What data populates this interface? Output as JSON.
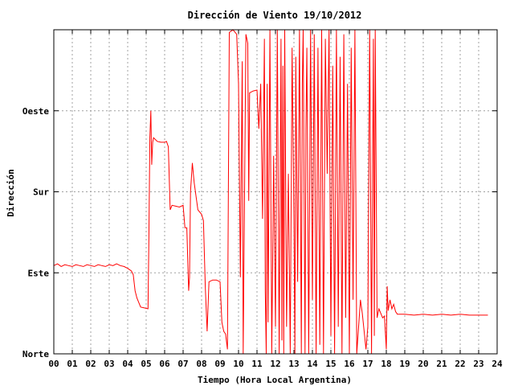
{
  "chart_data": {
    "type": "line",
    "title": "Dirección de Viento 19/10/2012",
    "xlabel": "Tiempo (Hora Local Argentina)",
    "ylabel": "Dirección",
    "xlim": [
      0,
      24
    ],
    "ylim": [
      0,
      360
    ],
    "x_ticks": [
      "00",
      "01",
      "02",
      "03",
      "04",
      "05",
      "06",
      "07",
      "08",
      "09",
      "10",
      "11",
      "12",
      "13",
      "14",
      "15",
      "16",
      "17",
      "18",
      "19",
      "20",
      "21",
      "22",
      "23",
      "24"
    ],
    "y_ticks": [
      {
        "value": 0,
        "label": "Norte"
      },
      {
        "value": 90,
        "label": "Este"
      },
      {
        "value": 180,
        "label": "Sur"
      },
      {
        "value": 270,
        "label": "Oeste"
      }
    ],
    "grid": true,
    "line_color": "#ff0000",
    "series": [
      {
        "values": [
          [
            0.0,
            98
          ],
          [
            0.2,
            100
          ],
          [
            0.4,
            97
          ],
          [
            0.6,
            99
          ],
          [
            0.8,
            98
          ],
          [
            1.0,
            97
          ],
          [
            1.2,
            99
          ],
          [
            1.4,
            98
          ],
          [
            1.6,
            97
          ],
          [
            1.8,
            99
          ],
          [
            2.0,
            98
          ],
          [
            2.2,
            97
          ],
          [
            2.4,
            99
          ],
          [
            2.6,
            98
          ],
          [
            2.8,
            97
          ],
          [
            3.0,
            99
          ],
          [
            3.2,
            98
          ],
          [
            3.4,
            100
          ],
          [
            3.6,
            98
          ],
          [
            3.8,
            97
          ],
          [
            4.0,
            95
          ],
          [
            4.2,
            92
          ],
          [
            4.3,
            88
          ],
          [
            4.4,
            70
          ],
          [
            4.5,
            62
          ],
          [
            4.7,
            52
          ],
          [
            4.9,
            51
          ],
          [
            5.1,
            50
          ],
          [
            5.15,
            130
          ],
          [
            5.2,
            240
          ],
          [
            5.25,
            270
          ],
          [
            5.3,
            210
          ],
          [
            5.35,
            235
          ],
          [
            5.4,
            240
          ],
          [
            5.6,
            236
          ],
          [
            5.8,
            235
          ],
          [
            6.0,
            235
          ],
          [
            6.1,
            236
          ],
          [
            6.2,
            230
          ],
          [
            6.3,
            160
          ],
          [
            6.4,
            165
          ],
          [
            6.6,
            164
          ],
          [
            6.8,
            163
          ],
          [
            7.0,
            165
          ],
          [
            7.1,
            140
          ],
          [
            7.2,
            140
          ],
          [
            7.3,
            70
          ],
          [
            7.35,
            85
          ],
          [
            7.4,
            180
          ],
          [
            7.5,
            212
          ],
          [
            7.6,
            190
          ],
          [
            7.8,
            160
          ],
          [
            8.0,
            155
          ],
          [
            8.1,
            148
          ],
          [
            8.2,
            75
          ],
          [
            8.3,
            25
          ],
          [
            8.4,
            80
          ],
          [
            8.6,
            82
          ],
          [
            8.8,
            82
          ],
          [
            9.0,
            80
          ],
          [
            9.1,
            35
          ],
          [
            9.2,
            25
          ],
          [
            9.3,
            22
          ],
          [
            9.4,
            5
          ],
          [
            9.5,
            357
          ],
          [
            9.7,
            360
          ],
          [
            9.9,
            355
          ],
          [
            10.0,
            300
          ],
          [
            10.1,
            85
          ],
          [
            10.2,
            325
          ],
          [
            10.25,
            0
          ],
          [
            10.4,
            355
          ],
          [
            10.5,
            345
          ],
          [
            10.55,
            170
          ],
          [
            10.6,
            290
          ],
          [
            10.8,
            292
          ],
          [
            11.0,
            293
          ],
          [
            11.1,
            250
          ],
          [
            11.2,
            300
          ],
          [
            11.3,
            150
          ],
          [
            11.4,
            350
          ],
          [
            11.45,
            70
          ],
          [
            11.5,
            0
          ],
          [
            11.55,
            300
          ],
          [
            11.6,
            35
          ],
          [
            11.7,
            360
          ],
          [
            11.8,
            0
          ],
          [
            11.9,
            220
          ],
          [
            12.0,
            30
          ],
          [
            12.1,
            360
          ],
          [
            12.2,
            0
          ],
          [
            12.3,
            350
          ],
          [
            12.35,
            15
          ],
          [
            12.4,
            320
          ],
          [
            12.45,
            0
          ],
          [
            12.5,
            360
          ],
          [
            12.6,
            30
          ],
          [
            12.7,
            200
          ],
          [
            12.8,
            0
          ],
          [
            12.9,
            340
          ],
          [
            13.0,
            150
          ],
          [
            13.05,
            0
          ],
          [
            13.1,
            330
          ],
          [
            13.2,
            80
          ],
          [
            13.3,
            360
          ],
          [
            13.4,
            0
          ],
          [
            13.45,
            300
          ],
          [
            13.5,
            360
          ],
          [
            13.6,
            0
          ],
          [
            13.65,
            250
          ],
          [
            13.7,
            340
          ],
          [
            13.8,
            0
          ],
          [
            13.9,
            360
          ],
          [
            14.0,
            60
          ],
          [
            14.1,
            355
          ],
          [
            14.2,
            0
          ],
          [
            14.3,
            340
          ],
          [
            14.4,
            10
          ],
          [
            14.5,
            360
          ],
          [
            14.6,
            0
          ],
          [
            14.7,
            350
          ],
          [
            14.8,
            200
          ],
          [
            14.9,
            360
          ],
          [
            15.0,
            20
          ],
          [
            15.1,
            320
          ],
          [
            15.2,
            0
          ],
          [
            15.3,
            360
          ],
          [
            15.4,
            30
          ],
          [
            15.5,
            330
          ],
          [
            15.6,
            0
          ],
          [
            15.7,
            355
          ],
          [
            15.8,
            40
          ],
          [
            15.9,
            300
          ],
          [
            16.0,
            0
          ],
          [
            16.1,
            340
          ],
          [
            16.2,
            60
          ],
          [
            16.3,
            360
          ],
          [
            16.4,
            0
          ],
          [
            16.5,
            30
          ],
          [
            16.6,
            60
          ],
          [
            16.7,
            45
          ],
          [
            16.8,
            25
          ],
          [
            16.9,
            5
          ],
          [
            17.0,
            30
          ],
          [
            17.1,
            360
          ],
          [
            17.2,
            0
          ],
          [
            17.3,
            350
          ],
          [
            17.35,
            20
          ],
          [
            17.4,
            360
          ],
          [
            17.5,
            40
          ],
          [
            17.6,
            50
          ],
          [
            17.7,
            45
          ],
          [
            17.8,
            40
          ],
          [
            17.9,
            42
          ],
          [
            18.0,
            5
          ],
          [
            18.05,
            75
          ],
          [
            18.1,
            48
          ],
          [
            18.2,
            60
          ],
          [
            18.3,
            50
          ],
          [
            18.4,
            55
          ],
          [
            18.5,
            47
          ],
          [
            18.6,
            44
          ],
          [
            19.0,
            44
          ],
          [
            19.5,
            43
          ],
          [
            20.0,
            44
          ],
          [
            20.5,
            43
          ],
          [
            21.0,
            44
          ],
          [
            21.5,
            43
          ],
          [
            22.0,
            44
          ],
          [
            22.5,
            43
          ],
          [
            23.0,
            43
          ],
          [
            23.5,
            43
          ]
        ]
      }
    ]
  }
}
